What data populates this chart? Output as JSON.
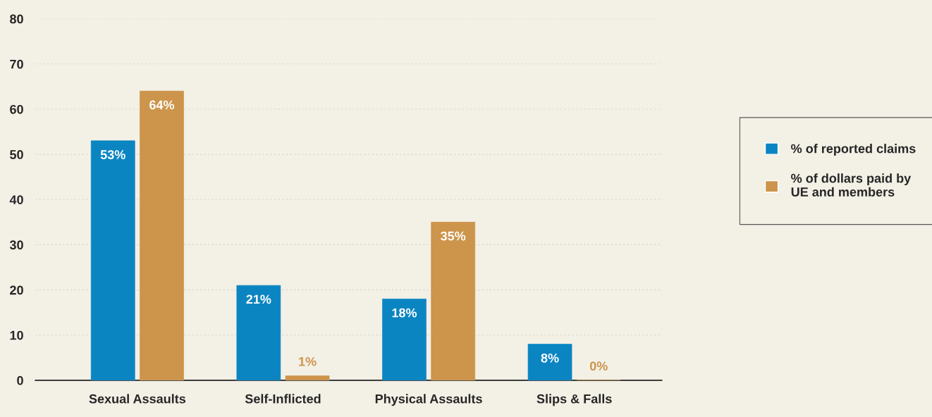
{
  "chart_data": {
    "type": "bar",
    "categories": [
      "Sexual Assaults",
      "Self-Inflicted",
      "Physical Assaults",
      "Slips & Falls"
    ],
    "series": [
      {
        "name": "% of reported claims",
        "color": "#0b85c2",
        "values": [
          53,
          21,
          18,
          8
        ],
        "value_labels": [
          "53%",
          "21%",
          "18%",
          "8%"
        ]
      },
      {
        "name": "% of dollars paid by\nUE and members",
        "color": "#cd944b",
        "values": [
          64,
          1,
          35,
          0
        ],
        "value_labels": [
          "64%",
          "1%",
          "35%",
          "0%"
        ]
      }
    ],
    "ylim": [
      0,
      80
    ],
    "yticks": [
      0,
      10,
      20,
      30,
      40,
      50,
      60,
      70,
      80
    ],
    "grid": "y",
    "legend": "right"
  }
}
